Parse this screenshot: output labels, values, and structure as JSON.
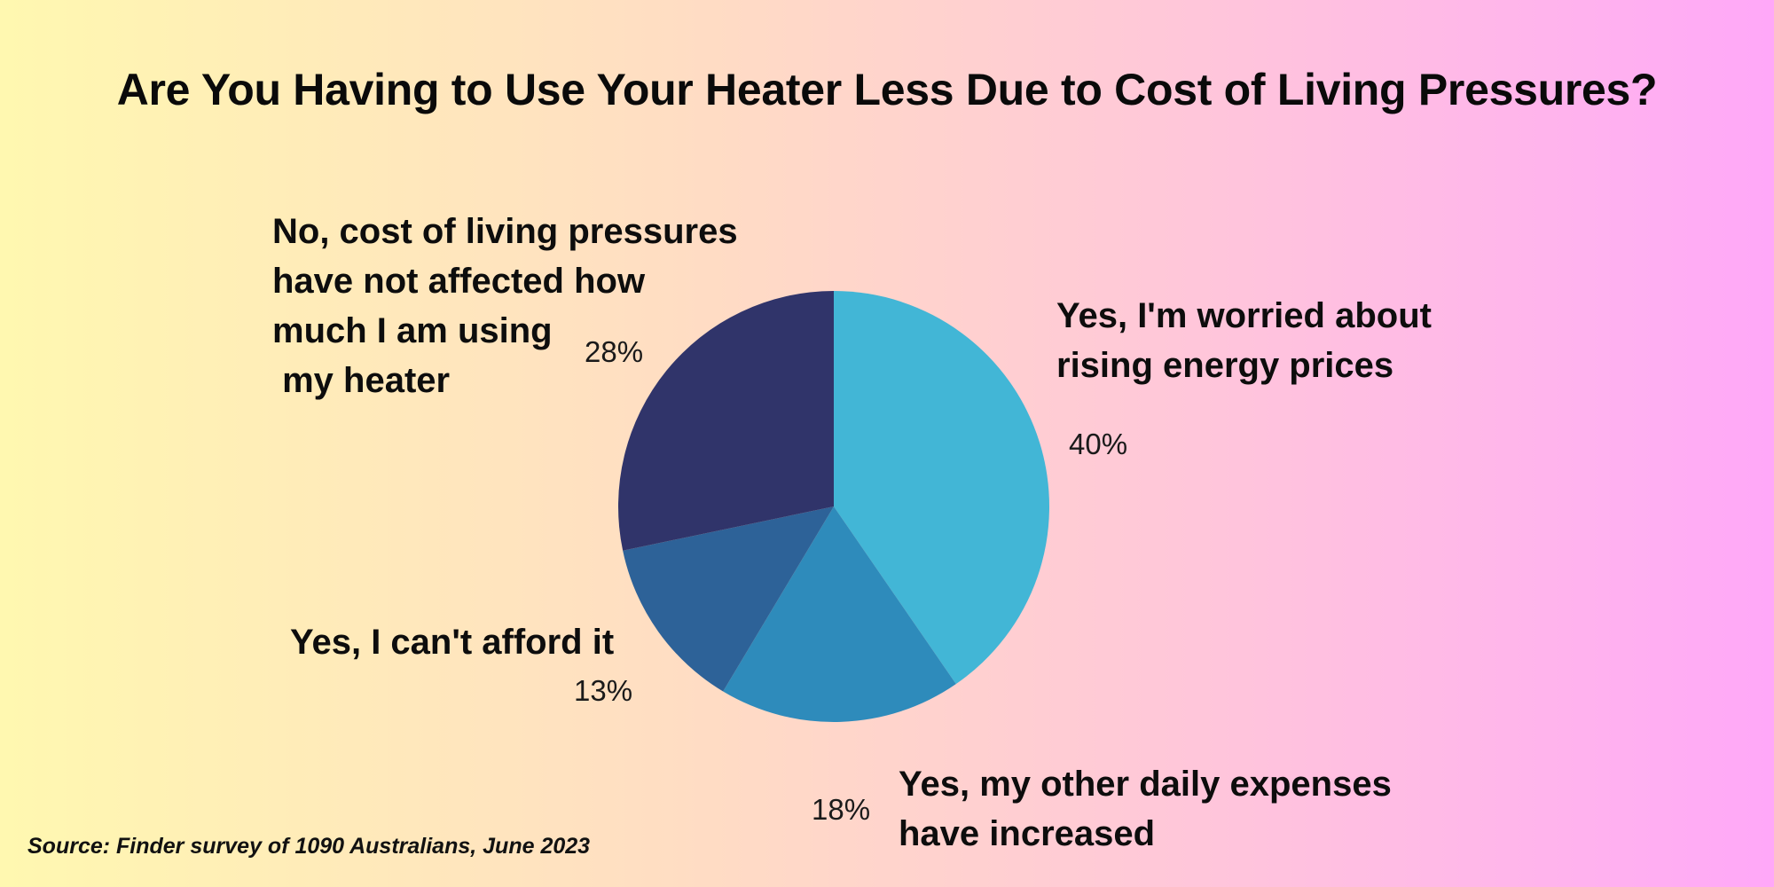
{
  "chart_data": {
    "type": "pie",
    "title": "Are You Having to Use Your Heater Less Due to Cost of Living Pressures?",
    "source": "Source: Finder survey of 1090 Australians, June 2023",
    "categories": [
      "Yes, I'm worried about\nrising energy prices",
      "Yes, my other daily expenses\nhave increased",
      "Yes, I can't afford it",
      "No, cost of living pressures\nhave not affected how\nmuch I am using\n my heater"
    ],
    "values": [
      40,
      18,
      13,
      28
    ],
    "value_labels": [
      "40%",
      "18%",
      "13%",
      "28%"
    ],
    "colors": [
      "#42b6d6",
      "#2e8bbb",
      "#2d6298",
      "#30346a"
    ]
  }
}
